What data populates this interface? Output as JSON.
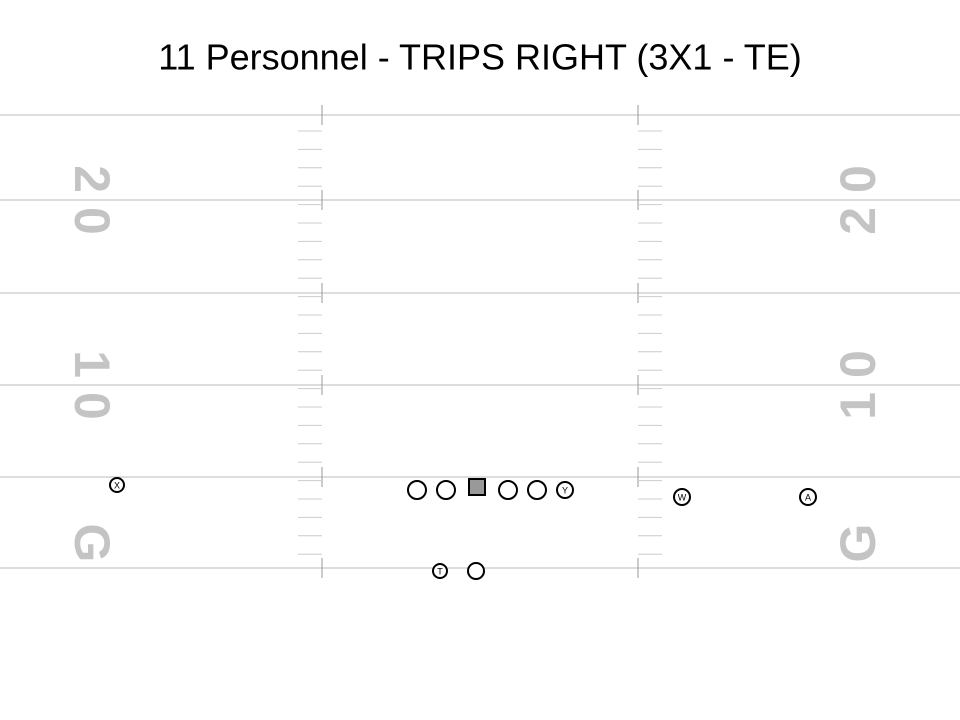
{
  "header": {
    "title": "11 Personnel - TRIPS RIGHT (3X1 - TE)"
  },
  "field": {
    "left_numbers": [
      "2 0",
      "1 0",
      "G"
    ],
    "right_numbers": [
      "2 0",
      "1 0",
      "G"
    ]
  },
  "players": {
    "x": "X",
    "y": "Y",
    "w": "W",
    "a": "A",
    "t": "T"
  }
}
